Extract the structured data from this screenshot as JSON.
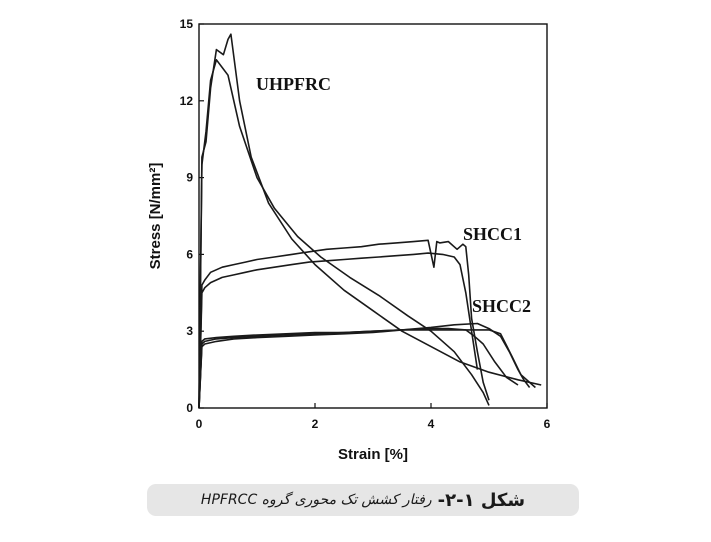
{
  "chart_data": {
    "type": "line",
    "xlabel": "Strain [%]",
    "ylabel": "Stress [N/mm²]",
    "xlim": [
      0,
      6
    ],
    "ylim": [
      0,
      15
    ],
    "xticks": [
      0,
      2,
      4,
      6
    ],
    "yticks": [
      0,
      3,
      6,
      9,
      12,
      15
    ],
    "grid": false,
    "series": [
      {
        "name": "UHPFRC",
        "curves": [
          {
            "x": [
              0,
              0.05,
              0.12,
              0.2,
              0.3,
              0.42,
              0.5,
              0.55,
              0.7,
              0.9,
              1.2,
              1.6,
              2.0,
              2.5,
              3.0,
              3.5,
              4.0,
              4.5,
              5.0,
              5.5,
              5.9
            ],
            "y": [
              0,
              9.8,
              10.4,
              12.5,
              14.0,
              13.8,
              14.4,
              14.6,
              12.0,
              9.8,
              8.0,
              6.6,
              5.6,
              4.6,
              3.8,
              3.0,
              2.4,
              1.8,
              1.4,
              1.1,
              0.9
            ]
          },
          {
            "x": [
              0,
              0.05,
              0.12,
              0.2,
              0.3,
              0.4,
              0.5,
              0.7,
              1.0,
              1.3,
              1.7,
              2.1,
              2.6,
              3.1,
              3.6,
              4.0,
              4.4,
              4.7,
              4.9,
              5.0
            ],
            "y": [
              0,
              9.5,
              10.8,
              12.8,
              13.6,
              13.3,
              13.0,
              11.0,
              9.0,
              7.8,
              6.7,
              5.9,
              5.1,
              4.4,
              3.6,
              3.0,
              2.2,
              1.3,
              0.6,
              0.1
            ]
          }
        ]
      },
      {
        "name": "SHCC1",
        "curves": [
          {
            "x": [
              0,
              0.05,
              0.1,
              0.2,
              0.4,
              0.6,
              0.8,
              1.0,
              1.3,
              1.6,
              1.9,
              2.2,
              2.5,
              2.8,
              3.1,
              3.4,
              3.7,
              3.95,
              4.05,
              4.1,
              4.15,
              4.3,
              4.45,
              4.55,
              4.6,
              4.65,
              4.7,
              4.8,
              4.9,
              5.0
            ],
            "y": [
              0,
              4.8,
              5.0,
              5.3,
              5.5,
              5.6,
              5.7,
              5.8,
              5.9,
              6.0,
              6.1,
              6.2,
              6.25,
              6.3,
              6.4,
              6.45,
              6.5,
              6.55,
              5.5,
              6.5,
              6.45,
              6.5,
              6.2,
              6.4,
              6.3,
              5.2,
              3.5,
              2.2,
              1.0,
              0.3
            ]
          },
          {
            "x": [
              0,
              0.05,
              0.1,
              0.2,
              0.4,
              0.6,
              0.8,
              1.0,
              1.3,
              1.6,
              1.9,
              2.2,
              2.5,
              2.8,
              3.1,
              3.4,
              3.7,
              3.95,
              4.2,
              4.4,
              4.5,
              4.6,
              4.7,
              4.8
            ],
            "y": [
              0,
              4.5,
              4.7,
              4.9,
              5.1,
              5.2,
              5.3,
              5.4,
              5.5,
              5.6,
              5.7,
              5.75,
              5.8,
              5.85,
              5.9,
              5.95,
              6.0,
              6.05,
              6.0,
              5.9,
              5.6,
              4.5,
              3.0,
              1.5
            ]
          }
        ]
      },
      {
        "name": "SHCC2",
        "curves": [
          {
            "x": [
              0,
              0.05,
              0.1,
              0.3,
              0.6,
              1.0,
              1.5,
              2.0,
              2.5,
              3.0,
              3.5,
              4.0,
              4.4,
              4.8,
              5.0,
              5.2,
              5.35,
              5.5,
              5.6,
              5.7
            ],
            "y": [
              0,
              2.4,
              2.5,
              2.6,
              2.7,
              2.75,
              2.8,
              2.85,
              2.9,
              2.95,
              3.05,
              3.15,
              3.25,
              3.3,
              3.1,
              2.8,
              2.2,
              1.5,
              1.1,
              0.8
            ]
          },
          {
            "x": [
              0,
              0.05,
              0.1,
              0.3,
              0.6,
              1.0,
              1.5,
              2.0,
              2.5,
              3.0,
              3.5,
              4.0,
              4.3,
              4.6,
              4.75,
              4.9,
              5.1,
              5.3,
              5.5
            ],
            "y": [
              0,
              2.5,
              2.6,
              2.7,
              2.75,
              2.8,
              2.85,
              2.9,
              2.95,
              3.0,
              3.05,
              3.1,
              3.1,
              3.05,
              2.8,
              2.5,
              1.8,
              1.2,
              0.9
            ]
          },
          {
            "x": [
              0,
              0.05,
              0.1,
              0.3,
              0.6,
              1.0,
              1.5,
              2.0,
              2.5,
              3.0,
              3.5,
              4.0,
              4.5,
              5.0,
              5.2,
              5.4,
              5.55,
              5.7,
              5.8
            ],
            "y": [
              0,
              2.6,
              2.7,
              2.75,
              2.8,
              2.85,
              2.9,
              2.95,
              2.95,
              3.0,
              3.05,
              3.05,
              3.05,
              3.05,
              2.9,
              2.0,
              1.3,
              1.0,
              0.8
            ]
          }
        ]
      }
    ]
  },
  "caption": {
    "figure_number": "شکل ۱-۲-",
    "text": "رفتار کشش تک محوری گروه HPFRCC"
  }
}
